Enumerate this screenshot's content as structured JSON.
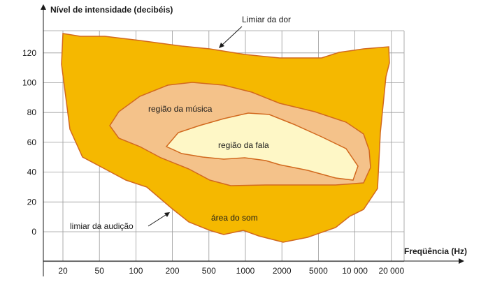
{
  "chart_data": {
    "type": "area",
    "ylabel": "Nível de intensidade (decibéis)",
    "xlabel": "Freqüência (Hz)",
    "x_categories": [
      "20",
      "50",
      "100",
      "200",
      "500",
      "1000",
      "2000",
      "5000",
      "10 000",
      "20 000"
    ],
    "y_ticks": [
      0,
      20,
      40,
      60,
      80,
      100,
      120
    ],
    "ylim": [
      -20,
      135
    ],
    "grid": true,
    "regions": [
      {
        "label": "área do som",
        "fill": "#f5b800",
        "stroke": "#d2691e"
      },
      {
        "label": "região da música",
        "fill": "#f4c28a",
        "stroke": "#d2691e"
      },
      {
        "label": "região da fala",
        "fill": "#fef7c6",
        "stroke": "#d2691e"
      }
    ],
    "annotations": {
      "pain_threshold": "Limiar da dor",
      "hearing_threshold": "limiar da audição"
    }
  }
}
